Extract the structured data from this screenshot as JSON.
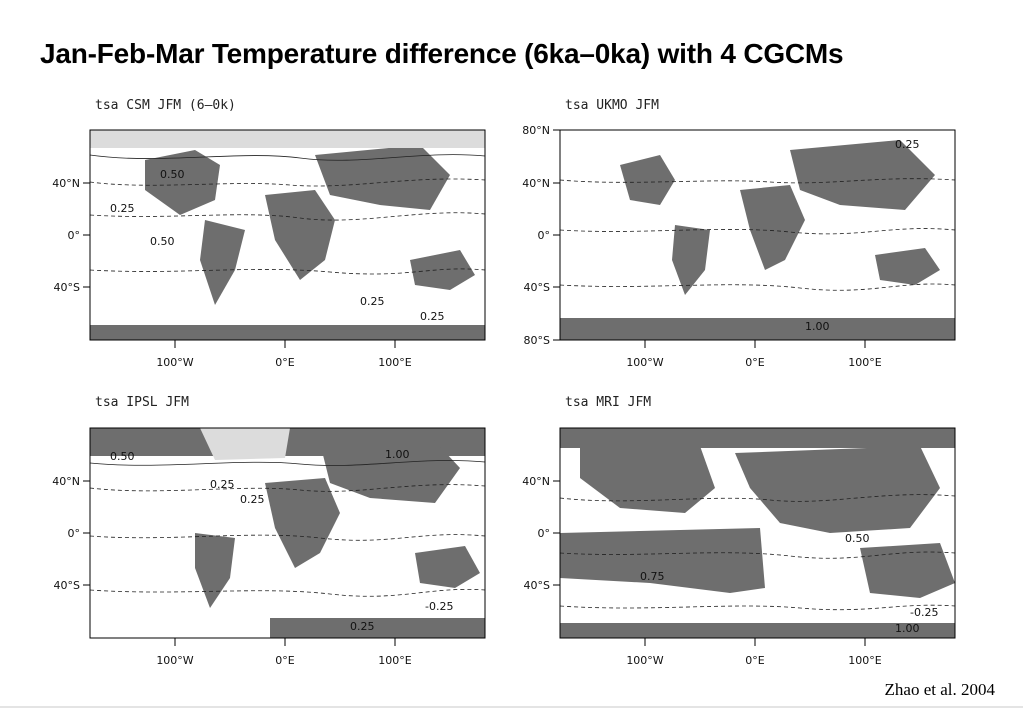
{
  "slide": {
    "title": "Jan-Feb-Mar Temperature difference (6ka–0ka) with 4 CGCMs",
    "credit": "Zhao et al. 2004"
  },
  "colors": {
    "positive_shading": "#6e6e6e",
    "sea_ice": "#dcdcdc",
    "contour": "#222222"
  },
  "axes": {
    "x_ticks": [
      "100°W",
      "0°E",
      "100°E"
    ],
    "y_ticks_full": [
      "80°N",
      "40°N",
      "0°",
      "40°S",
      "80°S"
    ],
    "y_ticks_short": [
      "40°N",
      "0°",
      "40°S"
    ]
  },
  "panels": [
    {
      "id": "csm",
      "title": "tsa CSM JFM (6–0k)",
      "labels": [
        "0.50",
        "0.25",
        "0.50",
        "0.25",
        "0.25"
      ]
    },
    {
      "id": "ukmo",
      "title": "tsa UKMO JFM",
      "labels": [
        "1.00",
        "0.25"
      ]
    },
    {
      "id": "ipsl",
      "title": "tsa IPSL JFM",
      "labels": [
        "0.50",
        "0.25",
        "1.00",
        "-0.25",
        "0.25",
        "0.25"
      ]
    },
    {
      "id": "mri",
      "title": "tsa MRI JFM",
      "labels": [
        "0.50",
        "0.75",
        "-0.25",
        "1.00"
      ]
    }
  ]
}
